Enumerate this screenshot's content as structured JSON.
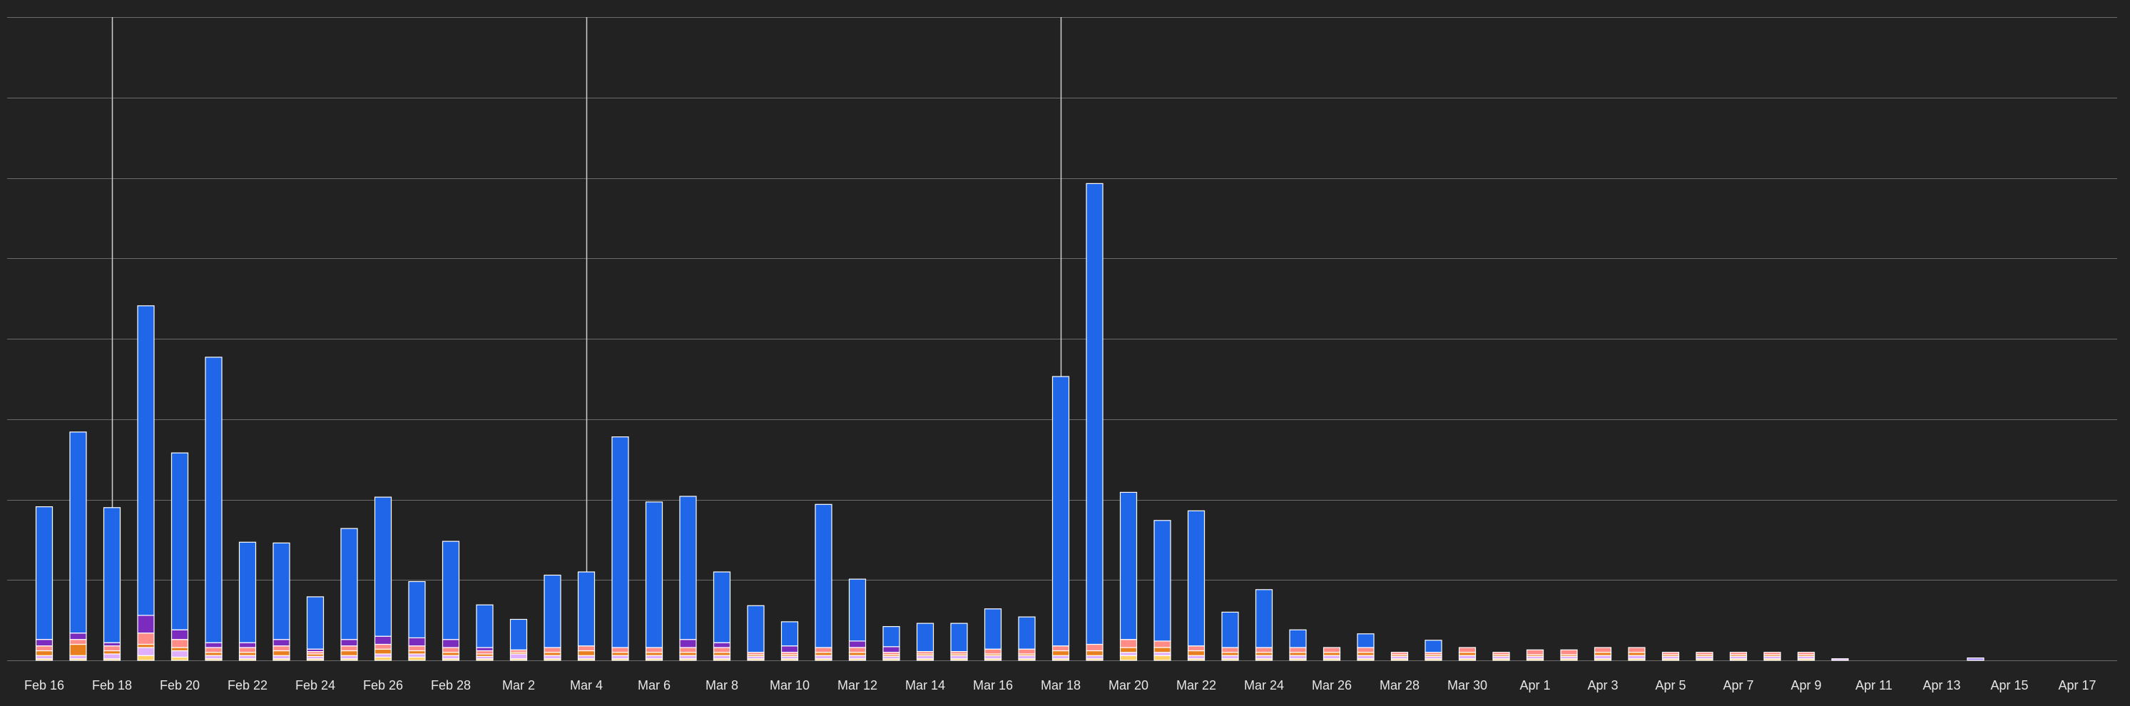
{
  "chart_data": {
    "type": "bar",
    "stacked": true,
    "xlabel": "",
    "ylabel": "",
    "ylim": [
      0,
      800
    ],
    "grid": true,
    "legend": "none",
    "background_color": "#222222",
    "grid_color": "#6a6a6a",
    "tick_label_color": "#e6e6e6",
    "bar_outline_color": "#ffffff",
    "x_tick_labels": [
      "Feb 16",
      "Feb 18",
      "Feb 20",
      "Feb 22",
      "Feb 24",
      "Feb 26",
      "Feb 28",
      "Mar 2",
      "Mar 4",
      "Mar 6",
      "Mar 8",
      "Mar 10",
      "Mar 12",
      "Mar 14",
      "Mar 16",
      "Mar 18",
      "Mar 20",
      "Mar 22",
      "Mar 24",
      "Mar 26",
      "Mar 28",
      "Mar 30",
      "Apr 1",
      "Apr 3",
      "Apr 5",
      "Apr 7",
      "Apr 9",
      "Apr 11",
      "Apr 13",
      "Apr 15",
      "Apr 17"
    ],
    "highlighted_dates": [
      "Feb 18",
      "Mar 4",
      "Mar 18"
    ],
    "categories": [
      "Feb 16",
      "Feb 17",
      "Feb 18",
      "Feb 19",
      "Feb 20",
      "Feb 21",
      "Feb 22",
      "Feb 23",
      "Feb 24",
      "Feb 25",
      "Feb 26",
      "Feb 27",
      "Feb 28",
      "Mar 1",
      "Mar 2",
      "Mar 3",
      "Mar 4",
      "Mar 5",
      "Mar 6",
      "Mar 7",
      "Mar 8",
      "Mar 9",
      "Mar 10",
      "Mar 11",
      "Mar 12",
      "Mar 13",
      "Mar 14",
      "Mar 15",
      "Mar 16",
      "Mar 17",
      "Mar 18",
      "Mar 19",
      "Mar 20",
      "Mar 21",
      "Mar 22",
      "Mar 23",
      "Mar 24",
      "Mar 25",
      "Mar 26",
      "Mar 27",
      "Mar 28",
      "Mar 29",
      "Mar 30",
      "Mar 31",
      "Apr 1",
      "Apr 2",
      "Apr 3",
      "Apr 4",
      "Apr 5",
      "Apr 6",
      "Apr 7",
      "Apr 8",
      "Apr 9",
      "Apr 10",
      "Apr 11",
      "Apr 12",
      "Apr 13",
      "Apr 14",
      "Apr 15",
      "Apr 16",
      "Apr 17"
    ],
    "series": [
      {
        "color": "#1f66e8",
        "values": [
          165,
          250,
          168,
          385,
          220,
          355,
          125,
          120,
          65,
          138,
          173,
          70,
          122,
          53,
          38,
          90,
          92,
          262,
          181,
          178,
          88,
          58,
          30,
          178,
          77,
          25,
          35,
          35,
          50,
          40,
          335,
          573,
          183,
          150,
          168,
          44,
          72,
          22,
          0,
          17,
          0,
          15,
          0,
          0,
          0,
          0,
          0,
          0,
          0,
          0,
          0,
          0,
          0,
          0,
          0,
          0,
          0,
          0,
          0,
          0,
          0
        ]
      },
      {
        "color": "#8cb32e",
        "values": [
          0,
          0,
          0,
          0,
          0,
          0,
          0,
          0,
          0,
          0,
          0,
          0,
          0,
          0,
          0,
          0,
          0,
          0,
          0,
          0,
          0,
          0,
          0,
          0,
          0,
          0,
          0,
          0,
          0,
          0,
          0,
          0,
          0,
          0,
          0,
          0,
          0,
          0,
          0,
          0,
          0,
          0,
          0,
          0,
          0,
          0,
          0,
          0,
          0,
          0,
          0,
          0,
          0,
          0,
          0,
          0,
          0,
          0,
          0,
          0,
          0
        ]
      },
      {
        "color": "#7b2cbf",
        "values": [
          8,
          8,
          4,
          22,
          12,
          6,
          6,
          8,
          3,
          8,
          10,
          10,
          10,
          4,
          0,
          0,
          0,
          0,
          0,
          10,
          6,
          0,
          8,
          0,
          8,
          7,
          0,
          0,
          0,
          0,
          0,
          0,
          0,
          0,
          0,
          0,
          0,
          0,
          0,
          0,
          0,
          0,
          0,
          0,
          0,
          0,
          0,
          0,
          0,
          0,
          0,
          0,
          0,
          0,
          0,
          0,
          0,
          0,
          0,
          0,
          0
        ]
      },
      {
        "color": "#ff8c86",
        "values": [
          6,
          6,
          6,
          14,
          10,
          6,
          6,
          6,
          3,
          6,
          6,
          6,
          6,
          4,
          3,
          6,
          6,
          6,
          6,
          6,
          6,
          3,
          3,
          6,
          6,
          3,
          3,
          3,
          6,
          6,
          6,
          8,
          10,
          8,
          6,
          6,
          6,
          6,
          6,
          6,
          3,
          3,
          6,
          3,
          6,
          6,
          6,
          6,
          3,
          3,
          3,
          3,
          3,
          0,
          0,
          0,
          0,
          0,
          0,
          0,
          0
        ]
      },
      {
        "color": "#e77f1e",
        "values": [
          6,
          14,
          4,
          4,
          4,
          4,
          4,
          6,
          3,
          6,
          6,
          4,
          4,
          3,
          2,
          4,
          6,
          4,
          4,
          4,
          4,
          2,
          2,
          4,
          4,
          2,
          2,
          2,
          2,
          2,
          6,
          6,
          6,
          6,
          6,
          4,
          4,
          4,
          4,
          4,
          2,
          2,
          4,
          2,
          2,
          2,
          4,
          4,
          2,
          2,
          2,
          2,
          2,
          0,
          0,
          0,
          0,
          0,
          0,
          0,
          0
        ]
      },
      {
        "color": "#e0b0ff",
        "values": [
          4,
          4,
          6,
          10,
          8,
          4,
          4,
          4,
          3,
          4,
          4,
          4,
          4,
          3,
          6,
          4,
          4,
          4,
          4,
          4,
          4,
          3,
          3,
          4,
          4,
          3,
          4,
          4,
          4,
          4,
          4,
          4,
          4,
          4,
          4,
          4,
          4,
          4,
          4,
          4,
          3,
          3,
          4,
          3,
          3,
          3,
          4,
          4,
          3,
          3,
          3,
          3,
          3,
          2,
          0,
          0,
          0,
          0,
          0,
          0,
          0
        ]
      },
      {
        "color": "#ffd166",
        "values": [
          2,
          2,
          2,
          6,
          4,
          2,
          2,
          2,
          2,
          2,
          4,
          4,
          2,
          2,
          2,
          2,
          2,
          2,
          2,
          2,
          2,
          2,
          2,
          2,
          2,
          2,
          2,
          2,
          2,
          2,
          2,
          2,
          6,
          6,
          2,
          2,
          2,
          2,
          2,
          2,
          2,
          2,
          2,
          2,
          2,
          2,
          2,
          2,
          2,
          2,
          2,
          2,
          2,
          0,
          0,
          0,
          0,
          0,
          0,
          0,
          0
        ]
      },
      {
        "color": "#4ecdc4",
        "values": [
          0,
          0,
          0,
          0,
          0,
          0,
          0,
          0,
          0,
          0,
          0,
          0,
          0,
          0,
          0,
          0,
          0,
          0,
          0,
          0,
          0,
          0,
          0,
          0,
          0,
          0,
          0,
          0,
          0,
          0,
          0,
          0,
          0,
          0,
          0,
          0,
          0,
          0,
          0,
          0,
          0,
          0,
          0,
          0,
          0,
          0,
          0,
          0,
          0,
          0,
          0,
          0,
          0,
          0,
          0,
          0,
          0,
          0,
          0,
          0,
          0
        ]
      },
      {
        "color": "#c1121f",
        "values": [
          0,
          0,
          0,
          0,
          0,
          0,
          0,
          0,
          0,
          0,
          0,
          0,
          0,
          0,
          0,
          0,
          0,
          0,
          0,
          0,
          0,
          0,
          0,
          0,
          0,
          0,
          0,
          0,
          0,
          0,
          0,
          0,
          0,
          0,
          0,
          0,
          0,
          0,
          0,
          0,
          0,
          0,
          0,
          0,
          0,
          0,
          0,
          0,
          0,
          0,
          0,
          0,
          0,
          0,
          0,
          0,
          0,
          0,
          0,
          0,
          0
        ]
      },
      {
        "color": "#a78bfa",
        "values": [
          0,
          0,
          0,
          0,
          0,
          0,
          0,
          0,
          0,
          0,
          0,
          0,
          0,
          0,
          0,
          0,
          0,
          0,
          0,
          0,
          0,
          0,
          0,
          0,
          0,
          0,
          0,
          0,
          0,
          0,
          0,
          0,
          0,
          0,
          0,
          0,
          0,
          0,
          0,
          0,
          0,
          0,
          0,
          0,
          0,
          0,
          0,
          0,
          0,
          0,
          0,
          0,
          0,
          0,
          0,
          0,
          0,
          3,
          0,
          0,
          0
        ]
      }
    ]
  }
}
